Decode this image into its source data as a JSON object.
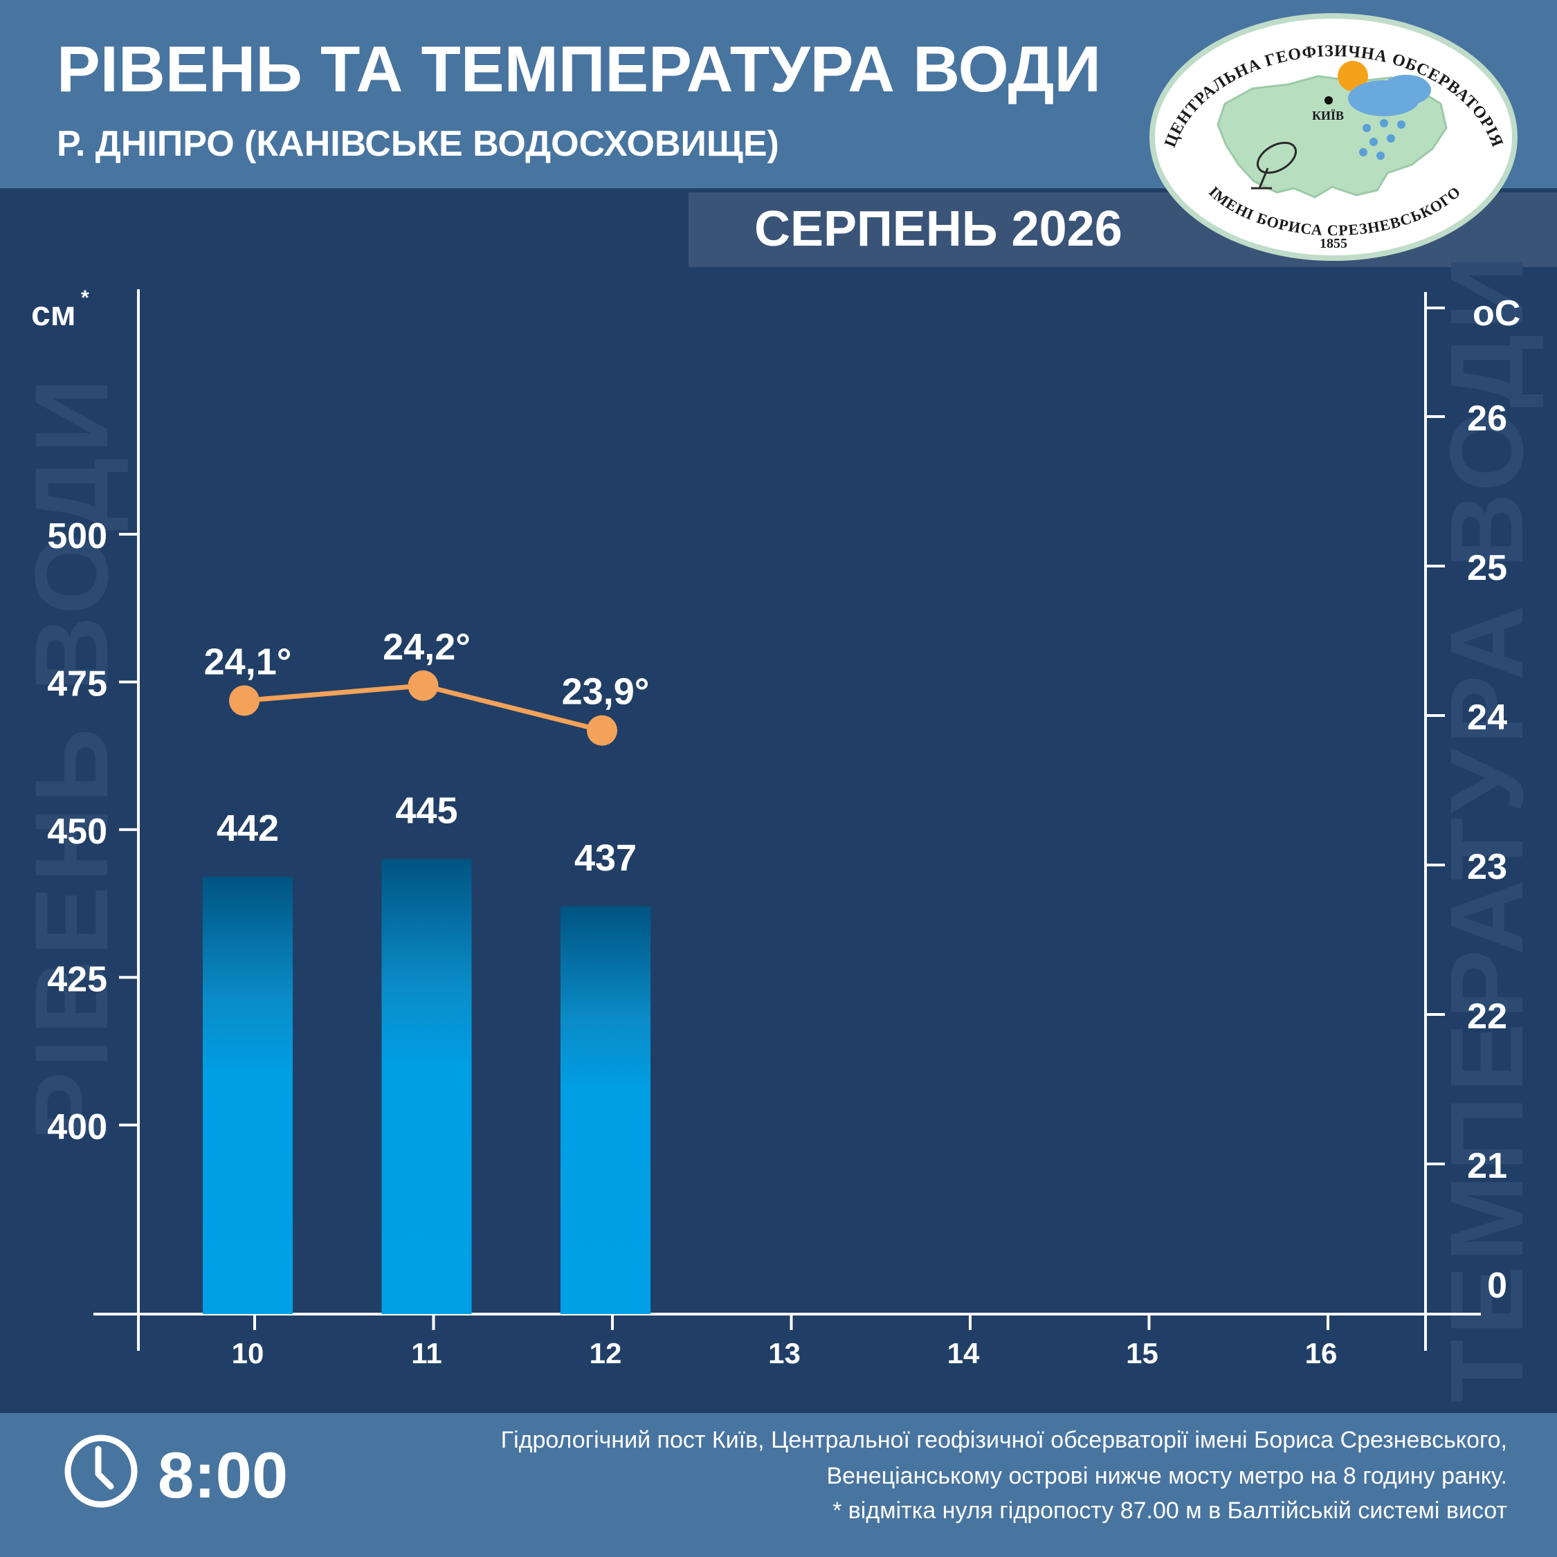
{
  "header": {
    "title": "РІВЕНЬ ТА ТЕМПЕРАТУРА ВОДИ",
    "subtitle": "Р. ДНІПРО (КАНІВСЬКЕ ВОДОСХОВИЩЕ)",
    "month": "СЕРПЕНЬ 2026"
  },
  "logo": {
    "top_text": "ЦЕНТРАЛЬНА ГЕОФІЗИЧНА ОБСЕРВАТОРІЯ",
    "bottom_text": "ІМЕНІ БОРИСА СРЕЗНЕВСЬКОГО",
    "year": "1855",
    "city": "КИЇВ"
  },
  "chart_data": {
    "type": "bar",
    "categories": [
      "10",
      "11",
      "12",
      "13",
      "14",
      "15",
      "16"
    ],
    "series": [
      {
        "values": [
          442,
          445,
          437,
          null,
          null,
          null,
          null
        ],
        "labels": [
          "442",
          "445",
          "437"
        ]
      },
      {
        "values": [
          24.1,
          24.2,
          23.9,
          null,
          null,
          null,
          null
        ],
        "labels": [
          "24,1°",
          "24,2°",
          "23,9°"
        ]
      }
    ],
    "ylabel_left": "РІВЕНЬ ВОДИ",
    "ylabel_right": "ТЕМПЕРАТУРА ВОДИ",
    "yunit_left": "см",
    "yunit_left_mark": "*",
    "yunit_right": "оС",
    "yticks_left": [
      400,
      425,
      450,
      475,
      500
    ],
    "yticks_right": [
      0,
      21,
      22,
      23,
      24,
      25,
      26
    ],
    "ylim_left": [
      368,
      542
    ],
    "colors": {
      "bar": "#00a0e6",
      "bar_top": "#005482",
      "line": "#f4a259"
    }
  },
  "footer": {
    "time": "8:00",
    "note_line1": "Гідрологічний пост Київ, Центральної геофізичної обсерваторії імені Бориса Срезневського,",
    "note_line2": "Венеціанському острові нижче мосту метро  на 8 годину ранку.",
    "note_line3": "* відмітка нуля гідропосту 87.00 м в Балтійській системі висот"
  }
}
